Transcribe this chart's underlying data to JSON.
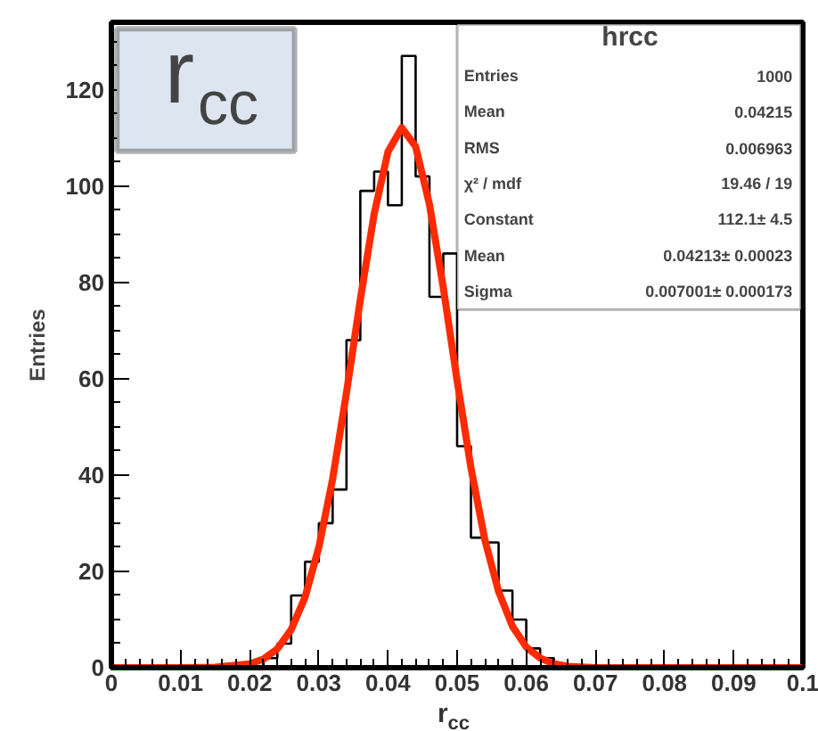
{
  "chart_data": {
    "type": "histogram",
    "xlabel": "r$_{cc}$",
    "ylabel": "Entries",
    "xlim": [
      0,
      0.1
    ],
    "xticks": [
      {
        "value": 0,
        "label": "0"
      },
      0.01,
      0.02,
      0.03,
      0.04,
      0.05,
      0.06,
      0.07,
      0.08,
      0.09,
      0.1
    ],
    "ylim": [
      0,
      134
    ],
    "yticks": [
      0,
      20,
      40,
      60,
      80,
      100,
      120
    ],
    "grid": false,
    "annotations": [
      "r$_{cc}$",
      "hrcc",
      "Entries",
      "1000",
      "Mean",
      "0.04215",
      "RMS",
      "0.006963",
      "χ² / mdf",
      "19.46 / 19",
      "Constant",
      "112.1± 4.5",
      "Mean",
      "0.04213± 0.00023",
      "Sigma",
      "0.007001± 0.000173"
    ],
    "series": [
      {
        "color": "#000000",
        "bins": [
          0.022,
          0.024,
          0.026,
          0.028,
          0.03,
          0.032,
          0.034,
          0.036,
          0.038,
          0.04,
          0.042,
          0.044,
          0.046,
          0.048,
          0.05,
          0.052,
          0.054,
          0.056,
          0.058,
          0.06,
          0.062,
          0.064
        ],
        "values": [
          2,
          5,
          15,
          22,
          30,
          37,
          68,
          99,
          103,
          96,
          127,
          102,
          77,
          86,
          46,
          27,
          26,
          16,
          10,
          4,
          2
        ]
      },
      {
        "type": "line",
        "color": "#ff2a00",
        "x": [
          0,
          0.01,
          0.015,
          0.02,
          0.022,
          0.024,
          0.026,
          0.028,
          0.03,
          0.032,
          0.034,
          0.036,
          0.038,
          0.04,
          0.042,
          0.044,
          0.046,
          0.048,
          0.05,
          0.052,
          0.054,
          0.056,
          0.058,
          0.06,
          0.062,
          0.064,
          0.066,
          0.07,
          0.1
        ],
        "values": [
          0,
          0,
          0.1,
          0.8,
          1.8,
          3.9,
          7.9,
          14.6,
          25,
          39.2,
          57.1,
          76.4,
          94.2,
          107.1,
          112.1,
          108.2,
          96.2,
          78.9,
          59.6,
          41.5,
          26.6,
          15.8,
          8.6,
          4.3,
          2,
          0.8,
          0.3,
          0,
          0
        ]
      }
    ]
  }
}
